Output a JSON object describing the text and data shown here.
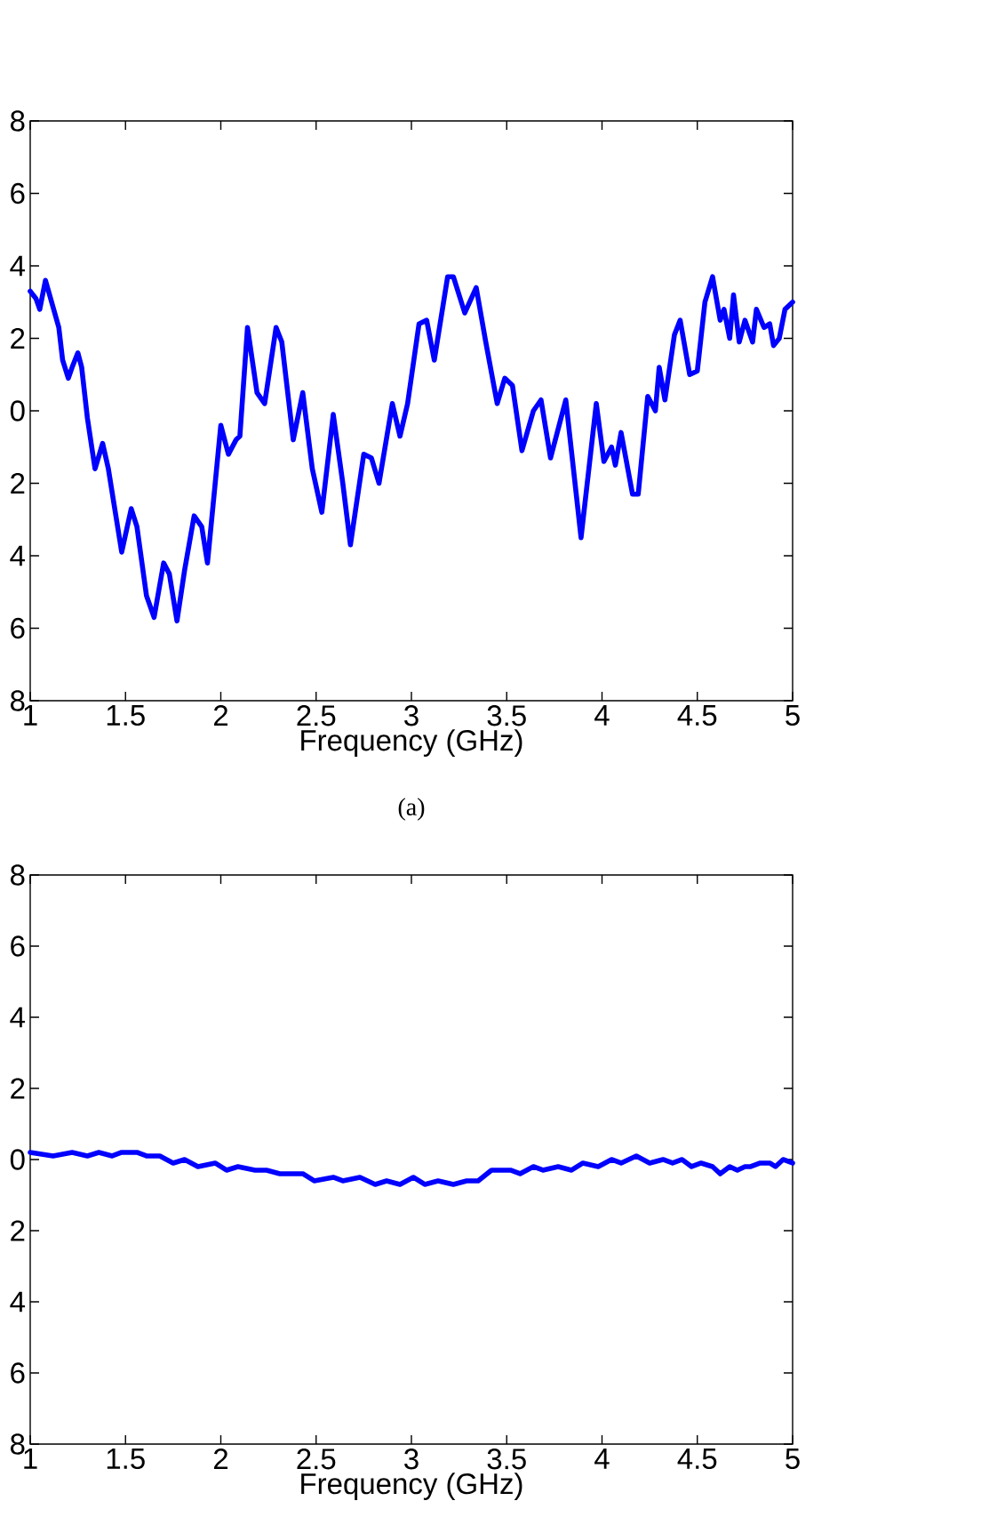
{
  "chart_data": [
    {
      "type": "line",
      "xlabel": "Frequency (GHz)",
      "color": "#0000ff",
      "x": [
        1.0,
        1.03,
        1.05,
        1.08,
        1.15,
        1.17,
        1.2,
        1.22,
        1.25,
        1.27,
        1.3,
        1.34,
        1.38,
        1.41,
        1.48,
        1.53,
        1.56,
        1.61,
        1.65,
        1.7,
        1.73,
        1.77,
        1.81,
        1.86,
        1.9,
        1.93,
        2.0,
        2.04,
        2.08,
        2.1,
        2.14,
        2.19,
        2.23,
        2.29,
        2.32,
        2.38,
        2.43,
        2.48,
        2.53,
        2.59,
        2.64,
        2.68,
        2.75,
        2.79,
        2.83,
        2.9,
        2.94,
        2.98,
        3.04,
        3.08,
        3.12,
        3.19,
        3.22,
        3.28,
        3.34,
        3.39,
        3.45,
        3.49,
        3.53,
        3.58,
        3.64,
        3.68,
        3.73,
        3.81,
        3.89,
        3.97,
        4.01,
        4.05,
        4.07,
        4.1,
        4.16,
        4.19,
        4.24,
        4.28,
        4.3,
        4.33,
        4.38,
        4.41,
        4.46,
        4.5,
        4.54,
        4.58,
        4.62,
        4.64,
        4.67,
        4.69,
        4.72,
        4.75,
        4.79,
        4.81,
        4.85,
        4.88,
        4.9,
        4.93,
        4.96,
        5.0
      ],
      "values": [
        3.3,
        3.1,
        2.8,
        3.6,
        2.3,
        1.4,
        0.9,
        1.2,
        1.6,
        1.2,
        -0.2,
        -1.6,
        -0.9,
        -1.6,
        -3.9,
        -2.7,
        -3.2,
        -5.1,
        -5.7,
        -4.2,
        -4.5,
        -5.8,
        -4.4,
        -2.9,
        -3.2,
        -4.2,
        -0.4,
        -1.2,
        -0.8,
        -0.7,
        2.3,
        0.5,
        0.2,
        2.3,
        1.9,
        -0.8,
        0.5,
        -1.6,
        -2.8,
        -0.1,
        -2.0,
        -3.7,
        -1.2,
        -1.3,
        -2.0,
        0.2,
        -0.7,
        0.2,
        2.4,
        2.5,
        1.4,
        3.7,
        3.7,
        2.7,
        3.4,
        1.9,
        0.2,
        0.9,
        0.7,
        -1.1,
        0.0,
        0.3,
        -1.3,
        0.3,
        -3.5,
        0.2,
        -1.4,
        -1.0,
        -1.5,
        -0.6,
        -2.3,
        -2.3,
        0.4,
        0.0,
        1.2,
        0.3,
        2.1,
        2.5,
        1.0,
        1.1,
        3.0,
        3.7,
        2.5,
        2.8,
        2.0,
        3.2,
        1.9,
        2.5,
        1.9,
        2.8,
        2.3,
        2.4,
        1.8,
        2.0,
        2.8,
        3.0
      ],
      "xlim": [
        1,
        5
      ],
      "xticks": [
        1,
        1.5,
        2,
        2.5,
        3,
        3.5,
        4,
        4.5,
        5
      ],
      "ylim": [
        -8,
        8
      ],
      "yticks": [
        {
          "value": -8,
          "label": "8"
        },
        {
          "value": -6,
          "label": "6"
        },
        {
          "value": -4,
          "label": "4"
        },
        {
          "value": -2,
          "label": "2"
        },
        0,
        2,
        4,
        6,
        8
      ],
      "annotations": [
        "(a)"
      ]
    },
    {
      "type": "line",
      "xlabel": "Frequency (GHz)",
      "color": "#0000ff",
      "x": [
        1.0,
        1.12,
        1.22,
        1.3,
        1.36,
        1.43,
        1.48,
        1.56,
        1.61,
        1.68,
        1.75,
        1.81,
        1.88,
        1.97,
        2.03,
        2.09,
        2.18,
        2.24,
        2.31,
        2.43,
        2.49,
        2.59,
        2.64,
        2.73,
        2.81,
        2.87,
        2.94,
        3.01,
        3.07,
        3.14,
        3.22,
        3.29,
        3.35,
        3.42,
        3.52,
        3.57,
        3.64,
        3.69,
        3.77,
        3.84,
        3.9,
        3.98,
        4.05,
        4.1,
        4.18,
        4.25,
        4.32,
        4.37,
        4.42,
        4.47,
        4.52,
        4.58,
        4.62,
        4.67,
        4.71,
        4.75,
        4.78,
        4.83,
        4.88,
        4.91,
        4.95,
        5.0
      ],
      "values": [
        0.2,
        0.1,
        0.2,
        0.1,
        0.2,
        0.1,
        0.2,
        0.2,
        0.1,
        0.1,
        -0.1,
        0.0,
        -0.2,
        -0.1,
        -0.3,
        -0.2,
        -0.3,
        -0.3,
        -0.4,
        -0.4,
        -0.6,
        -0.5,
        -0.6,
        -0.5,
        -0.7,
        -0.6,
        -0.7,
        -0.5,
        -0.7,
        -0.6,
        -0.7,
        -0.6,
        -0.6,
        -0.3,
        -0.3,
        -0.4,
        -0.2,
        -0.3,
        -0.2,
        -0.3,
        -0.1,
        -0.2,
        0.0,
        -0.1,
        0.1,
        -0.1,
        0.0,
        -0.1,
        0.0,
        -0.2,
        -0.1,
        -0.2,
        -0.4,
        -0.2,
        -0.3,
        -0.2,
        -0.2,
        -0.1,
        -0.1,
        -0.2,
        0.0,
        -0.1
      ],
      "xlim": [
        1,
        5
      ],
      "xticks": [
        1,
        1.5,
        2,
        2.5,
        3,
        3.5,
        4,
        4.5,
        5
      ],
      "ylim": [
        -8,
        8
      ],
      "yticks": [
        {
          "value": -8,
          "label": "8"
        },
        {
          "value": -6,
          "label": "6"
        },
        {
          "value": -4,
          "label": "4"
        },
        {
          "value": -2,
          "label": "2"
        },
        0,
        2,
        4,
        6,
        8
      ]
    }
  ]
}
